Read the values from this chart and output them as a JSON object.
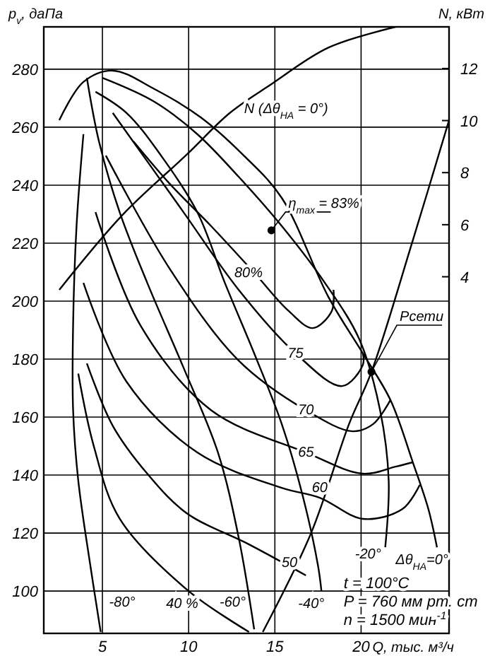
{
  "chart_data": {
    "type": "line",
    "xlabel": "Q, тыс. м³/ч",
    "ylabel": "p$_{v}$, даПа",
    "y2label": "N, кВт",
    "xlim": [
      1.6,
      25.1
    ],
    "xticks": [
      5,
      10,
      15,
      20
    ],
    "ylim": [
      85.4,
      294.6
    ],
    "yticks": [
      100,
      120,
      140,
      160,
      180,
      200,
      220,
      240,
      260,
      280
    ],
    "y2lim": [
      -9.7,
      13.6
    ],
    "y2ticks": [
      4,
      6,
      8,
      10,
      12
    ],
    "grid": true,
    "legend": false,
    "marker": "none",
    "line_style": "solid",
    "series": [
      {
        "name": "Δθ$_{НА}$=0°",
        "color": "#000000",
        "x": [
          2.5,
          3.9,
          5.6,
          8.0,
          10.7,
          13.2,
          15.4,
          18.1,
          20.1,
          21.7,
          23.0,
          23.9,
          24.4
        ],
        "values": [
          262.4,
          275.6,
          279.5,
          273.2,
          263.4,
          250.2,
          235.6,
          201.5,
          182,
          165.9,
          144.4,
          128.3,
          115.1
        ]
      },
      {
        "name": "-20°",
        "color": "#000000",
        "x": [
          5.0,
          8.0,
          10.5,
          12.9,
          15.4,
          17.9,
          19.9,
          21.1,
          21.6,
          21.4
        ],
        "values": [
          277,
          268.8,
          257.6,
          242.9,
          225.9,
          206.3,
          186.8,
          162.4,
          138.1,
          115.1
        ]
      },
      {
        "name": "-40°",
        "color": "#000000",
        "x": [
          4.6,
          6.4,
          8.4,
          10.5,
          12.1,
          13.8,
          15.4,
          16.6,
          17.5,
          17.7
        ],
        "values": [
          272.2,
          264.9,
          250.2,
          230.7,
          206.3,
          182,
          157.6,
          133.2,
          108.8,
          100
        ]
      },
      {
        "name": "-60°",
        "color": "#000000",
        "x": [
          4.1,
          4.8,
          6.0,
          7.6,
          9.7,
          11.7,
          12.9,
          13.8
        ],
        "values": [
          277,
          255.1,
          230.7,
          206.3,
          177.1,
          147.8,
          118.5,
          86.8
        ]
      },
      {
        "name": "-80°",
        "color": "#000000",
        "x": [
          3.9,
          3.5,
          3.3,
          3.3,
          3.6,
          4.3,
          4.9
        ],
        "values": [
          257.6,
          225.9,
          191.7,
          162.4,
          138.1,
          108.8,
          85.9
        ]
      },
      {
        "name": "80%",
        "color": "#000000",
        "x": [
          6.8,
          8.9,
          11.3,
          13.8,
          15.8,
          17.2,
          18.3,
          18.4
        ],
        "values": [
          255.1,
          240.5,
          225.9,
          209.8,
          196.6,
          190.7,
          196.6,
          203.9
        ]
      },
      {
        "name": "75",
        "color": "#000000",
        "x": [
          5.6,
          9.7,
          12.9,
          16.2,
          18.9,
          20.1,
          20.1
        ],
        "values": [
          264.9,
          230.7,
          203.9,
          182,
          170.7,
          178,
          182
        ]
      },
      {
        "name": "70",
        "color": "#000000",
        "x": [
          5.2,
          8.9,
          12.9,
          16.8,
          19.5,
          20.7,
          21.7
        ],
        "values": [
          250.2,
          211.2,
          179.5,
          162.4,
          155.1,
          157.6,
          165.9
        ]
      },
      {
        "name": "65",
        "color": "#000000",
        "x": [
          4.6,
          7.2,
          11.3,
          16.8,
          20.1,
          22.0,
          23.0
        ],
        "values": [
          230.7,
          191.7,
          162.4,
          147.8,
          140.5,
          142.9,
          144.4
        ]
      },
      {
        "name": "60",
        "color": "#000000",
        "x": [
          3.9,
          6.4,
          10.5,
          15.4,
          17.6,
          20.1,
          22.4,
          23.4
        ],
        "values": [
          206.3,
          172.2,
          147.8,
          135.6,
          132.2,
          124.9,
          128.3,
          136.6
        ]
      },
      {
        "name": "50",
        "color": "#000000",
        "x": [
          4.1,
          5.6,
          7.6,
          9.9,
          13.5,
          16.8
        ],
        "values": [
          178.5,
          157,
          140.5,
          126.8,
          116.1,
          105.4
        ]
      },
      {
        "name": "40 %",
        "color": "#000000",
        "x": [
          3.6,
          4.5,
          6.0,
          9.9,
          13.5
        ],
        "values": [
          175,
          150,
          125,
          100.5,
          85.9
        ]
      },
      {
        "name": "Pсети",
        "color": "#000000",
        "x": [
          14.3,
          17.1,
          19.3,
          20.6,
          23.0,
          25.1
        ],
        "values": [
          85.9,
          120,
          157.6,
          175.6,
          221,
          262.4
        ]
      },
      {
        "type": "scatter",
        "marker": "circle",
        "color": "#000000",
        "x": [
          20.6
        ],
        "values": [
          175.6
        ]
      },
      {
        "name": "η$_{max}$ = 83%",
        "type": "scatter",
        "marker": "circle",
        "color": "#000000",
        "x": [
          14.8
        ],
        "values": [
          224.4
        ]
      },
      {
        "name": "N (Δθ$_{НА}$ = 0°)",
        "color": "#000000",
        "axis": "y2",
        "x": [
          2.5,
          6.2,
          9.9,
          12.4,
          14.8,
          18.1,
          22.0
        ],
        "values": [
          3.5,
          6.4,
          8.7,
          10.3,
          11.4,
          12.8,
          13.6
        ]
      }
    ],
    "annotations": [
      "t = 100°C",
      "P = 760 мм рт. ст",
      "n = 1500 мин$^{-1}$"
    ]
  }
}
